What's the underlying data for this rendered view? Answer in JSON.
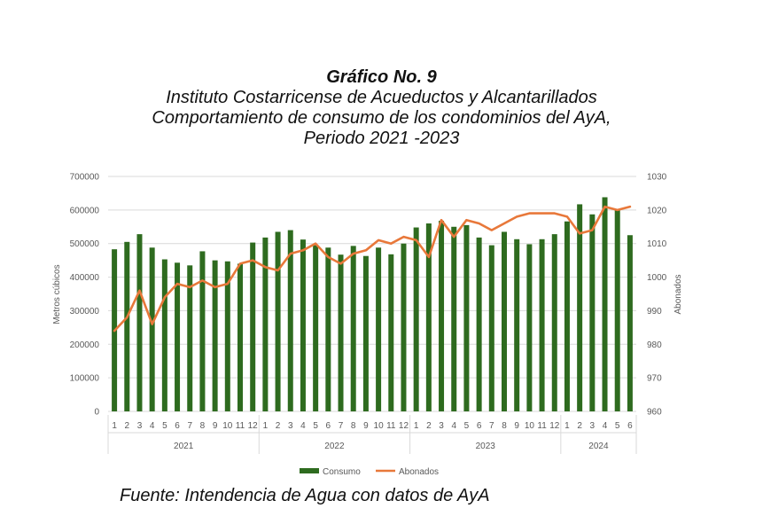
{
  "title_lines": [
    "Gráfico No. 9",
    "Instituto Costarricense de Acueductos y Alcantarillados",
    "Comportamiento de consumo de los condominios del AyA,",
    "Periodo 2021 -2023"
  ],
  "source": "Fuente: Intendencia de Agua con datos de AyA",
  "colors": {
    "bar": "#2e6b1f",
    "line": "#e8783a",
    "axis_text": "#595959",
    "grid": "#d9d9d9"
  },
  "chart_data": {
    "type": "bar+line",
    "ylabel_left": "Metros cúbicos",
    "ylabel_right": "Abonados",
    "ylim_left": [
      0,
      700000
    ],
    "ylim_right": [
      960,
      1030
    ],
    "yticks_left": [
      "0",
      "100000",
      "200000",
      "300000",
      "400000",
      "500000",
      "600000",
      "700000"
    ],
    "yticks_right": [
      "960",
      "970",
      "980",
      "990",
      "1000",
      "1010",
      "1020",
      "1030"
    ],
    "months": [
      "1",
      "2",
      "3",
      "4",
      "5",
      "6",
      "7",
      "8",
      "9",
      "10",
      "11",
      "12",
      "1",
      "2",
      "3",
      "4",
      "5",
      "6",
      "7",
      "8",
      "9",
      "10",
      "11",
      "12",
      "1",
      "2",
      "3",
      "4",
      "5",
      "6",
      "7",
      "8",
      "9",
      "10",
      "11",
      "12",
      "1",
      "2",
      "3",
      "4",
      "5",
      "6"
    ],
    "year_groups": [
      {
        "label": "2021",
        "count": 12
      },
      {
        "label": "2022",
        "count": 12
      },
      {
        "label": "2023",
        "count": 12
      },
      {
        "label": "2024",
        "count": 6
      }
    ],
    "series": [
      {
        "name": "Consumo",
        "type": "bar",
        "axis": "left",
        "values": [
          483000,
          505000,
          528000,
          488000,
          453000,
          443000,
          435000,
          477000,
          450000,
          447000,
          440000,
          503000,
          518000,
          535000,
          540000,
          512000,
          495000,
          488000,
          467000,
          493000,
          463000,
          488000,
          468000,
          500000,
          548000,
          560000,
          568000,
          550000,
          555000,
          518000,
          495000,
          535000,
          513000,
          498000,
          513000,
          528000,
          566000,
          617000,
          587000,
          638000,
          600000,
          525000
        ]
      },
      {
        "name": "Abonados",
        "type": "line",
        "axis": "right",
        "values": [
          984,
          988,
          996,
          986,
          994,
          998,
          997,
          999,
          997,
          998,
          1004,
          1005,
          1003,
          1002,
          1007,
          1008,
          1010,
          1006,
          1004,
          1007,
          1008,
          1011,
          1010,
          1012,
          1011,
          1006,
          1017,
          1012,
          1017,
          1016,
          1014,
          1016,
          1018,
          1019,
          1019,
          1019,
          1018,
          1013,
          1014,
          1021,
          1020,
          1021
        ]
      }
    ],
    "legend": [
      "Consumo",
      "Abonados"
    ],
    "legend_position": "bottom"
  }
}
